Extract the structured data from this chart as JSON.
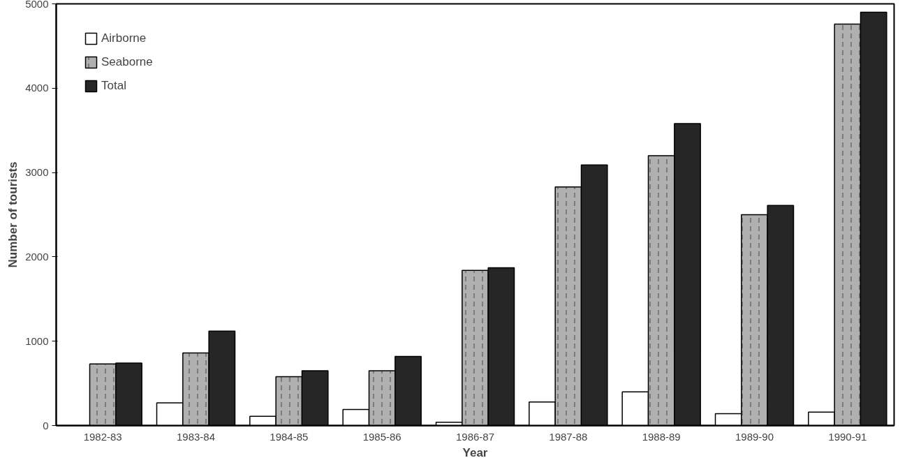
{
  "chart_data": {
    "type": "bar",
    "xlabel": "Year",
    "ylabel": "Number of tourists",
    "categories": [
      "1982-83",
      "1983-84",
      "1984-85",
      "1985-86",
      "1986-87",
      "1987-88",
      "1988-89",
      "1989-90",
      "1990-91"
    ],
    "series": [
      {
        "name": "Airborne",
        "color": "#ffffff",
        "values": [
          null,
          270,
          110,
          190,
          40,
          280,
          400,
          140,
          160
        ]
      },
      {
        "name": "Seaborne",
        "color": "#b0b0b0",
        "values": [
          730,
          860,
          580,
          650,
          1840,
          2830,
          3200,
          2500,
          4760
        ]
      },
      {
        "name": "Total",
        "color": "#262626",
        "values": [
          740,
          1120,
          650,
          820,
          1870,
          3090,
          3580,
          2610,
          4900
        ]
      }
    ],
    "ylim": [
      0,
      5000
    ],
    "yticks": [
      0,
      1000,
      2000,
      3000,
      4000,
      5000
    ],
    "grid": false,
    "legend": "top left"
  }
}
